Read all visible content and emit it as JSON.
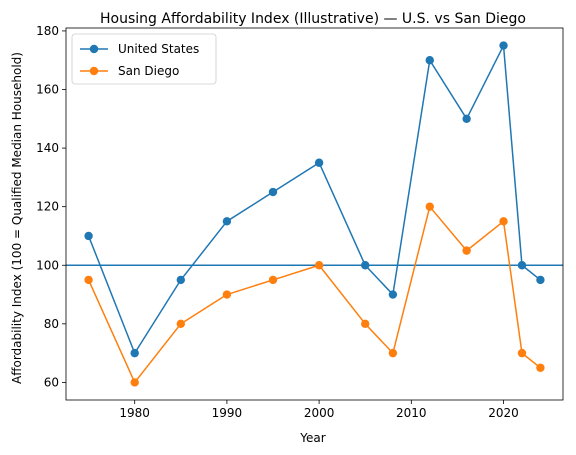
{
  "chart_data": {
    "type": "line",
    "title": "Housing Affordability Index (Illustrative) — U.S. vs San Diego",
    "xlabel": "Year",
    "ylabel": "Affordability Index (100 = Qualified Median Household)",
    "x": [
      1975,
      1980,
      1985,
      1990,
      1995,
      2000,
      2005,
      2008,
      2012,
      2016,
      2020,
      2022,
      2024
    ],
    "xlim": [
      1972.55,
      2026.45
    ],
    "ylim": [
      54.0,
      181.0
    ],
    "xticks": [
      1980,
      1990,
      2000,
      2010,
      2020
    ],
    "yticks": [
      60,
      80,
      100,
      120,
      140,
      160,
      180
    ],
    "reference_line": {
      "y": 100,
      "color": "#1f77b4"
    },
    "grid": false,
    "legend_position": "top-left",
    "series": [
      {
        "name": "United States",
        "color": "#1f77b4",
        "values": [
          110,
          70,
          95,
          115,
          125,
          135,
          100,
          90,
          170,
          150,
          175,
          100,
          95
        ]
      },
      {
        "name": "San Diego",
        "color": "#ff7f0e",
        "values": [
          95,
          60,
          80,
          90,
          95,
          100,
          80,
          70,
          120,
          105,
          115,
          70,
          65
        ]
      }
    ]
  }
}
